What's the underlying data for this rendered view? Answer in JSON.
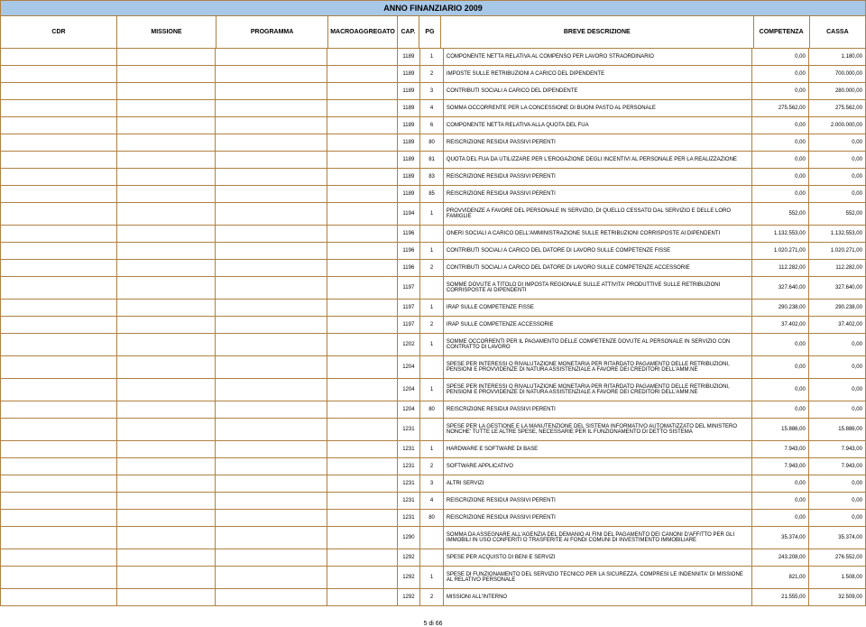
{
  "title": "ANNO FINANZIARIO 2009",
  "headers": {
    "cdr": "CDR",
    "missione": "MISSIONE",
    "programma": "PROGRAMMA",
    "macro": "MACROAGGREGATO",
    "cap": "CAP.",
    "pg": "PG",
    "desc": "BREVE DESCRIZIONE",
    "competenza": "COMPETENZA",
    "cassa": "CASSA"
  },
  "colors": {
    "header_bg": "#a8c8e8",
    "border": "#b08040",
    "text": "#000000"
  },
  "rows": [
    {
      "cap": "1189",
      "pg": "1",
      "desc": "COMPONENTE NETTA RELATIVA AL COMPENSO PER LAVORO STRAORDINARIO",
      "comp": "0,00",
      "cassa": "1.180,00"
    },
    {
      "cap": "1189",
      "pg": "2",
      "desc": "IMPOSTE SULLE RETRIBUZIONI A CARICO DEL DIPENDENTE",
      "comp": "0,00",
      "cassa": "700.000,00"
    },
    {
      "cap": "1189",
      "pg": "3",
      "desc": "CONTRIBUTI SOCIALI A CARICO DEL DIPENDENTE",
      "comp": "0,00",
      "cassa": "280.000,00"
    },
    {
      "cap": "1189",
      "pg": "4",
      "desc": "SOMMA OCCORRENTE PER LA CONCESSIONE DI BUONI PASTO AL PERSONALE",
      "comp": "275.562,00",
      "cassa": "275.562,00"
    },
    {
      "cap": "1189",
      "pg": "6",
      "desc": "COMPONENTE NETTA RELATIVA ALLA QUOTA DEL FUA",
      "comp": "0,00",
      "cassa": "2.000.000,00"
    },
    {
      "cap": "1189",
      "pg": "80",
      "desc": "REISCRIZIONE RESIDUI PASSIVI PERENTI",
      "comp": "0,00",
      "cassa": "0,00"
    },
    {
      "cap": "1189",
      "pg": "81",
      "desc": "QUOTA DEL FUA DA UTILIZZARE PER L'EROGAZIONE DEGLI INCENTIVI AL PERSONALE PER LA REALIZZAZIONE",
      "comp": "0,00",
      "cassa": "0,00"
    },
    {
      "cap": "1189",
      "pg": "83",
      "desc": "REISCRIZIONE RESIDUI PASSIVI PERENTI",
      "comp": "0,00",
      "cassa": "0,00"
    },
    {
      "cap": "1189",
      "pg": "85",
      "desc": "REISCRIZIONE RESIDUI PASSIVI PERENTI",
      "comp": "0,00",
      "cassa": "0,00"
    },
    {
      "cap": "1194",
      "pg": "1",
      "desc": "PROVVIDENZE A FAVORE DEL PERSONALE IN SERVIZIO, DI QUELLO CESSATO DAL SERVIZIO E DELLE LORO FAMIGLIE",
      "comp": "552,00",
      "cassa": "552,00"
    },
    {
      "cap": "1196",
      "pg": "",
      "desc": "ONERI SOCIALI A CARICO DELL'AMMINISTRAZIONE SULLE RETRIBUZIONI CORRISPOSTE AI DIPENDENTI",
      "comp": "1.132.553,00",
      "cassa": "1.132.553,00"
    },
    {
      "cap": "1196",
      "pg": "1",
      "desc": "CONTRIBUTI SOCIALI A CARICO DEL DATORE DI LAVORO SULLE COMPETENZE FISSE",
      "comp": "1.020.271,00",
      "cassa": "1.020.271,00"
    },
    {
      "cap": "1196",
      "pg": "2",
      "desc": "CONTRIBUTI SOCIALI A CARICO DEL DATORE DI LAVORO SULLE COMPETENZE ACCESSORIE",
      "comp": "112.282,00",
      "cassa": "112.282,00"
    },
    {
      "cap": "1197",
      "pg": "",
      "desc": "SOMME DOVUTE A TITOLO DI IMPOSTA REGIONALE SULLE ATTIVITA' PRODUTTIVE SULLE RETRIBUZIONI CORRISPOSTE AI DIPENDENTI",
      "comp": "327.640,00",
      "cassa": "327.640,00"
    },
    {
      "cap": "1197",
      "pg": "1",
      "desc": "IRAP SULLE COMPETENZE FISSE",
      "comp": "290.238,00",
      "cassa": "290.238,00"
    },
    {
      "cap": "1197",
      "pg": "2",
      "desc": "IRAP SULLE COMPETENZE ACCESSORIE",
      "comp": "37.402,00",
      "cassa": "37.402,00"
    },
    {
      "cap": "1202",
      "pg": "1",
      "desc": "SOMME OCCORRENTI PER IL PAGAMENTO DELLE COMPETENZE DOVUTE AL PERSONALE IN SERVIZIO CON CONTRATTO DI LAVORO",
      "comp": "0,00",
      "cassa": "0,00"
    },
    {
      "cap": "1204",
      "pg": "",
      "desc": "SPESE PER INTERESSI O RIVALUTAZIONE MONETARIA PER RITARDATO PAGAMENTO DELLE RETRIBUZIONI, PENSIONI E PROVVIDENZE DI NATURA ASSISTENZIALE A FAVORE DEI CREDITORI DELL'AMM.NE",
      "comp": "0,00",
      "cassa": "0,00"
    },
    {
      "cap": "1204",
      "pg": "1",
      "desc": "SPESE PER INTERESSI O RIVALUTAZIONE MONETARIA PER RITARDATO PAGAMENTO DELLE RETRIBUZIONI, PENSIONI E PROVVIDENZE DI NATURA ASSISTENZIALE A FAVORE DEI CREDITORI DELL'AMM.NE",
      "comp": "0,00",
      "cassa": "0,00"
    },
    {
      "cap": "1204",
      "pg": "80",
      "desc": "REISCRIZIONE RESIDUI PASSIVI PERENTI",
      "comp": "0,00",
      "cassa": "0,00"
    },
    {
      "cap": "1231",
      "pg": "",
      "desc": "SPESE PER LA GESTIONE E LA MANUTENZIONE DEL SISTEMA INFORMATIVO AUTOMATIZZATO DEL MINISTERO NONCHE' TUTTE LE ALTRE SPESE, NECESSARIE PER IL FUNZIONAMENTO DI DETTO SISTEMA",
      "comp": "15.886,00",
      "cassa": "15.886,00"
    },
    {
      "cap": "1231",
      "pg": "1",
      "desc": "HARDWARE E SOFTWARE DI BASE",
      "comp": "7.943,00",
      "cassa": "7.943,00"
    },
    {
      "cap": "1231",
      "pg": "2",
      "desc": "SOFTWARE APPLICATIVO",
      "comp": "7.943,00",
      "cassa": "7.943,00"
    },
    {
      "cap": "1231",
      "pg": "3",
      "desc": "ALTRI SERVIZI",
      "comp": "0,00",
      "cassa": "0,00"
    },
    {
      "cap": "1231",
      "pg": "4",
      "desc": "REISCRIZIONE RESIDUI PASSIVI PERENTI",
      "comp": "0,00",
      "cassa": "0,00"
    },
    {
      "cap": "1231",
      "pg": "80",
      "desc": "REISCRIZIONE RESIDUI PASSIVI PERENTI",
      "comp": "0,00",
      "cassa": "0,00"
    },
    {
      "cap": "1290",
      "pg": "",
      "desc": "SOMMA DA ASSEGNARE ALL'AGENZIA DEL DEMANIO AI FINI DEL PAGAMENTO DEI CANONI D'AFFITTO PER GLI IMMOBILI IN USO CONFERITI O TRASFERITE AI FONDI COMUNI DI INVESTIMENTO IMMOBILIARE",
      "comp": "35.374,00",
      "cassa": "35.374,00"
    },
    {
      "cap": "1292",
      "pg": "",
      "desc": "SPESE PER ACQUISTO DI BENI E SERVIZI",
      "comp": "243.208,00",
      "cassa": "276.552,00"
    },
    {
      "cap": "1292",
      "pg": "1",
      "desc": "SPESE DI FUNZIONAMENTO DEL SERVIZIO TECNICO PER LA SICUREZZA, COMPRESI LE INDENNITA' DI MISSIONE AL RELATIVO PERSONALE",
      "comp": "821,00",
      "cassa": "1.508,00"
    },
    {
      "cap": "1292",
      "pg": "2",
      "desc": "MISSIONI ALL'INTERNO",
      "comp": "21.555,00",
      "cassa": "32.509,00"
    }
  ],
  "footer": "5 di 66"
}
